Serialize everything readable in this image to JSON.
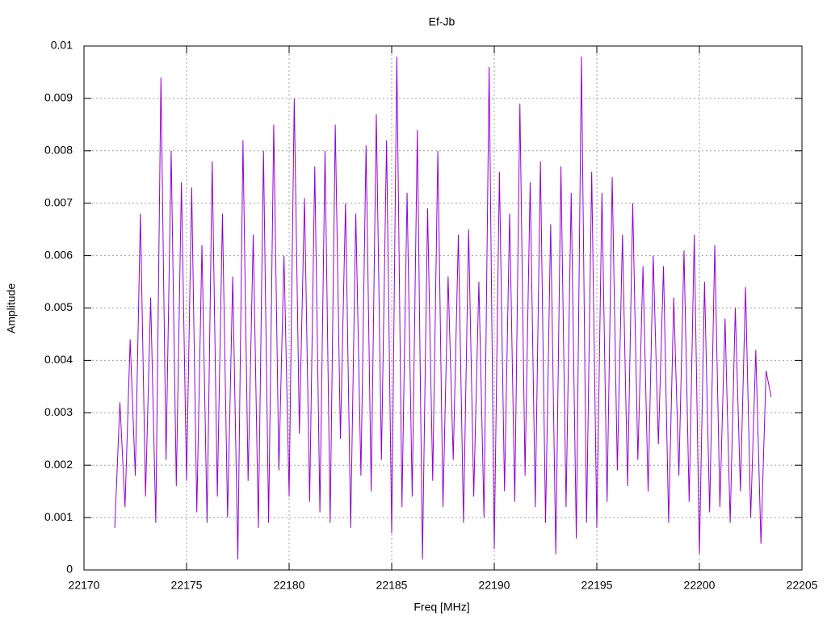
{
  "chart_data": {
    "type": "line",
    "title": "Ef-Jb",
    "x_label": "Freq [MHz]",
    "y_label": "Amplitude",
    "x": [
      22171.5,
      22171.75,
      22172,
      22172.25,
      22172.5,
      22172.75,
      22173,
      22173.25,
      22173.5,
      22173.75,
      22174,
      22174.25,
      22174.5,
      22174.75,
      22175,
      22175.25,
      22175.5,
      22175.75,
      22176,
      22176.25,
      22176.5,
      22176.75,
      22177,
      22177.25,
      22177.5,
      22177.75,
      22178,
      22178.25,
      22178.5,
      22178.75,
      22179,
      22179.25,
      22179.5,
      22179.75,
      22180,
      22180.25,
      22180.5,
      22180.75,
      22181,
      22181.25,
      22181.5,
      22181.75,
      22182,
      22182.25,
      22182.5,
      22182.75,
      22183,
      22183.25,
      22183.5,
      22183.75,
      22184,
      22184.25,
      22184.5,
      22184.75,
      22185,
      22185.25,
      22185.5,
      22185.75,
      22186,
      22186.25,
      22186.5,
      22186.75,
      22187,
      22187.25,
      22187.5,
      22187.75,
      22188,
      22188.25,
      22188.5,
      22188.75,
      22189,
      22189.25,
      22189.5,
      22189.75,
      22190,
      22190.25,
      22190.5,
      22190.75,
      22191,
      22191.25,
      22191.5,
      22191.75,
      22192,
      22192.25,
      22192.5,
      22192.75,
      22193,
      22193.25,
      22193.5,
      22193.75,
      22194,
      22194.25,
      22194.5,
      22194.75,
      22195,
      22195.25,
      22195.5,
      22195.75,
      22196,
      22196.25,
      22196.5,
      22196.75,
      22197,
      22197.25,
      22197.5,
      22197.75,
      22198,
      22198.25,
      22198.5,
      22198.75,
      22199,
      22199.25,
      22199.5,
      22199.75,
      22200,
      22200.25,
      22200.5,
      22200.75,
      22201,
      22201.25,
      22201.5,
      22201.75,
      22202,
      22202.25,
      22202.5,
      22202.75,
      22203,
      22203.25,
      22203.5
    ],
    "series": [
      {
        "color": "#9400d3",
        "values": [
          0.0008,
          0.0032,
          0.0012,
          0.0044,
          0.0018,
          0.0068,
          0.0014,
          0.0052,
          0.0009,
          0.0094,
          0.0021,
          0.008,
          0.0016,
          0.0074,
          0.0017,
          0.0073,
          0.0011,
          0.0062,
          0.0009,
          0.0078,
          0.0014,
          0.0068,
          0.001,
          0.0056,
          0.0002,
          0.0082,
          0.0017,
          0.0064,
          0.0008,
          0.008,
          0.0009,
          0.0085,
          0.0019,
          0.006,
          0.0014,
          0.009,
          0.0026,
          0.0071,
          0.0013,
          0.0077,
          0.0011,
          0.008,
          0.0009,
          0.0085,
          0.0025,
          0.007,
          0.0008,
          0.0068,
          0.0018,
          0.0081,
          0.0015,
          0.0087,
          0.0021,
          0.0082,
          0.0007,
          0.0098,
          0.0012,
          0.0072,
          0.0014,
          0.0084,
          0.0002,
          0.0069,
          0.0017,
          0.008,
          0.0012,
          0.0056,
          0.0021,
          0.0064,
          0.0009,
          0.0065,
          0.0014,
          0.0055,
          0.001,
          0.0096,
          0.0004,
          0.0076,
          0.0015,
          0.0068,
          0.0013,
          0.0089,
          0.0018,
          0.0074,
          0.0012,
          0.0078,
          0.0009,
          0.0066,
          0.0003,
          0.0077,
          0.0012,
          0.0072,
          0.0006,
          0.0098,
          0.0009,
          0.0076,
          0.0008,
          0.0072,
          0.0013,
          0.0075,
          0.0019,
          0.0064,
          0.0016,
          0.007,
          0.0021,
          0.0058,
          0.0015,
          0.006,
          0.0024,
          0.0058,
          0.0009,
          0.0052,
          0.0018,
          0.0061,
          0.0013,
          0.0064,
          0.0003,
          0.0055,
          0.0011,
          0.0062,
          0.0012,
          0.0048,
          0.0009,
          0.005,
          0.0015,
          0.0054,
          0.001,
          0.0042,
          0.0005,
          0.0038,
          0.0033
        ]
      }
    ],
    "xlim": [
      22170,
      22205
    ],
    "xticks": [
      22170,
      22175,
      22180,
      22185,
      22190,
      22195,
      22200,
      22205
    ],
    "ylim": [
      0,
      0.01
    ],
    "yticks": [
      0,
      0.001,
      0.002,
      0.003,
      0.004,
      0.005,
      0.006,
      0.007,
      0.008,
      0.009,
      0.01
    ],
    "grid": true
  }
}
